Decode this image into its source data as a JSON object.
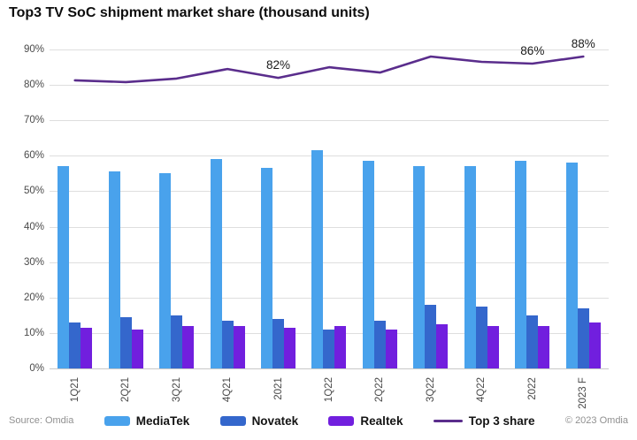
{
  "title": "Top3 TV SoC shipment market share (thousand units)",
  "footer": {
    "source": "Source: Omdia",
    "copyright": "© 2023 Omdia"
  },
  "chart_data": {
    "type": "bar",
    "subtype": "grouped-bars-with-line-overlay",
    "title": "Top3 TV SoC shipment market share (thousand units)",
    "categories": [
      "1Q21",
      "2Q21",
      "3Q21",
      "4Q21",
      "2021",
      "1Q22",
      "2Q22",
      "3Q22",
      "4Q22",
      "2022",
      "2023 F"
    ],
    "series": [
      {
        "name": "MediaTek",
        "type": "bar",
        "color": "#49A2EC",
        "values": [
          57,
          55.5,
          55,
          59,
          56.5,
          61.5,
          58.5,
          57,
          57,
          58.5,
          58
        ]
      },
      {
        "name": "Novatek",
        "type": "bar",
        "color": "#3467CC",
        "values": [
          13,
          14.5,
          15,
          13.5,
          14,
          11,
          13.5,
          18,
          17.5,
          15,
          17
        ]
      },
      {
        "name": "Realtek",
        "type": "bar",
        "color": "#711FDE",
        "values": [
          11.5,
          11,
          12,
          12,
          11.5,
          12,
          11,
          12.5,
          12,
          12,
          13
        ]
      },
      {
        "name": "Top 3 share",
        "type": "line",
        "color": "#5A2D8C",
        "values": [
          81.3,
          80.8,
          81.8,
          84.5,
          82,
          85,
          83.5,
          88,
          86.5,
          86,
          88
        ]
      }
    ],
    "annotations": [
      {
        "category_index": 4,
        "text": "82%"
      },
      {
        "category_index": 9,
        "text": "86%"
      },
      {
        "category_index": 10,
        "text": "88%"
      }
    ],
    "y_ticks": [
      "0%",
      "10%",
      "20%",
      "30%",
      "40%",
      "50%",
      "60%",
      "70%",
      "80%",
      "90%"
    ],
    "ylim": [
      0,
      90
    ],
    "xlabel": "",
    "ylabel": "",
    "grid": true,
    "gridline_color": "#dedede",
    "tick_label_color": "#4a4a4a",
    "legend_position": "bottom"
  }
}
